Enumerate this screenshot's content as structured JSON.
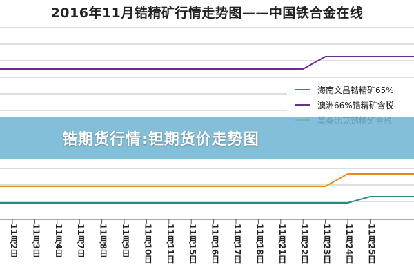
{
  "chart_data": {
    "type": "line",
    "title": "2016年11月锆精矿行情走势图——中国铁合金在线",
    "categories": [
      "11月2日",
      "11月3日",
      "11月4日",
      "11月7日",
      "11月8日",
      "11月9日",
      "11月10日",
      "11月11日",
      "11月15日",
      "11月16日",
      "11月17日",
      "11月18日",
      "11月21日",
      "11月22日",
      "11月23日",
      "11月24日",
      "11月25日"
    ],
    "series": [
      {
        "name": "海南文昌锆精矿65%",
        "color": "#2a8a86",
        "values": [
          0,
          0,
          0,
          0,
          0,
          0,
          0,
          0,
          0,
          0,
          0,
          0,
          0,
          0,
          0,
          0,
          1
        ]
      },
      {
        "name": "澳洲66%锆精矿含税",
        "color": "#6a2c91",
        "values": [
          0,
          0,
          0,
          0,
          0,
          0,
          0,
          0,
          0,
          0,
          0,
          0,
          0,
          0,
          1,
          1,
          1
        ]
      },
      {
        "name": "莫桑比克锆精矿含税",
        "color": "#e68a1f",
        "values": [
          0,
          0,
          0,
          0,
          0,
          0,
          0,
          0,
          0,
          0,
          0,
          0,
          0,
          0,
          0,
          1,
          1
        ]
      }
    ]
  },
  "overlay": {
    "banner_text": "锆期货行情:钽期货价走势图"
  }
}
